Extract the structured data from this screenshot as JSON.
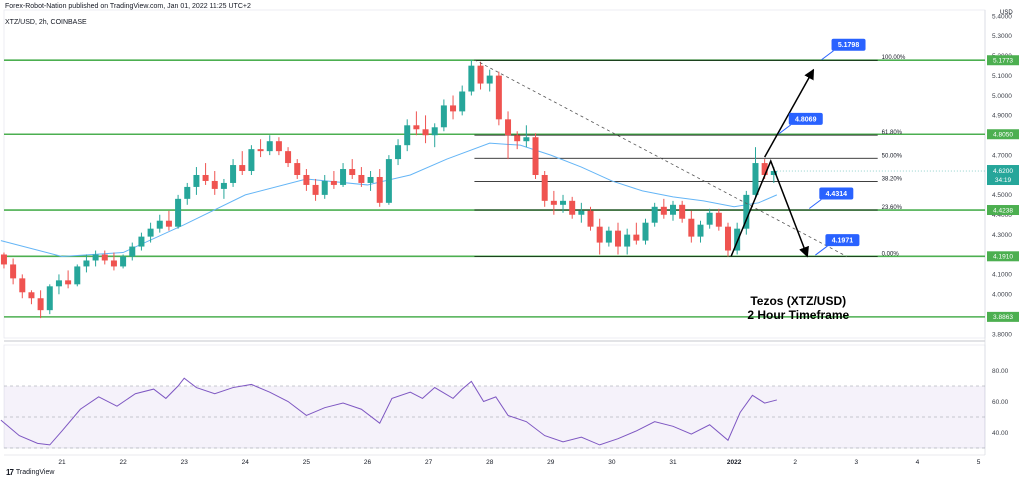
{
  "header": {
    "published": "Forex-Robot-Nation published on TradingView.com, Jan 01, 2022 11:25 UTC+2",
    "symbol": "XTZ/USD, 2h, COINBASE"
  },
  "footer": {
    "brand": "TradingView",
    "brand_logo": "17"
  },
  "colors": {
    "up": "#26a69a",
    "down": "#ef5350",
    "ma": "#64b5f6",
    "level": "#4caf50",
    "tag": "#2962ff",
    "rsi": "#7e57c2",
    "axis_text": "#131722"
  },
  "chart_data": {
    "type": "candlestick",
    "title": "Tezos (XTZ/USD)",
    "subtitle": "2 Hour Timeframe",
    "currency": "USD",
    "price_axis": {
      "range": [
        3.78,
        5.43
      ],
      "ticks": [
        5.4,
        5.3,
        5.2,
        5.1,
        5.0,
        4.9,
        4.8,
        4.7,
        4.6,
        4.5,
        4.4,
        4.3,
        4.2,
        4.1,
        4.0,
        3.9,
        3.8
      ],
      "top_label": "5.4000"
    },
    "x_axis": {
      "labels": [
        "21",
        "22",
        "23",
        "24",
        "25",
        "26",
        "27",
        "28",
        "29",
        "30",
        "31",
        "2022",
        "2",
        "3",
        "4",
        "5"
      ],
      "bold": [
        "2022"
      ]
    },
    "horizontal_levels": [
      5.1773,
      4.805,
      4.4238,
      4.191,
      3.8863
    ],
    "price_tags": [
      {
        "label": "5.1773",
        "value": 5.1773
      },
      {
        "label": "4.8050",
        "value": 4.805
      },
      {
        "label": "4.6200",
        "value": 4.62,
        "sub": "34:19",
        "current": true
      },
      {
        "label": "4.4238",
        "value": 4.4238
      },
      {
        "label": "4.1910",
        "value": 4.191
      },
      {
        "label": "3.8863",
        "value": 3.8863
      }
    ],
    "fibonacci": {
      "high": 5.1773,
      "low": 4.191,
      "levels": [
        {
          "ratio": 1.0,
          "label": "100.00%"
        },
        {
          "ratio": 0.618,
          "label": "61.80%"
        },
        {
          "ratio": 0.5,
          "label": "50.00%"
        },
        {
          "ratio": 0.382,
          "label": "38.20%"
        },
        {
          "ratio": 0.236,
          "label": "23.60%"
        },
        {
          "ratio": 0.0,
          "label": "0.00%"
        }
      ]
    },
    "callouts": [
      {
        "label": "5.1798",
        "value": 5.1798
      },
      {
        "label": "4.8069",
        "value": 4.8069
      },
      {
        "label": "4.4314",
        "value": 4.4314
      },
      {
        "label": "4.1971",
        "value": 4.1971
      }
    ],
    "trendline": {
      "from": {
        "day": 27.75,
        "price": 5.18
      },
      "to": {
        "day": 32.7,
        "price": 4.2
      }
    },
    "projection": [
      {
        "day": 31.95,
        "price": 4.19
      },
      {
        "day": 32.6,
        "price": 4.67
      },
      {
        "day": 33.2,
        "price": 4.19
      }
    ],
    "projection_up": {
      "from": {
        "day": 32.5,
        "price": 4.69
      },
      "to": {
        "day": 33.3,
        "price": 5.13
      }
    },
    "candles": [
      [
        20.05,
        4.2,
        4.21,
        4.13,
        4.15
      ],
      [
        20.2,
        4.15,
        4.18,
        4.05,
        4.08
      ],
      [
        20.35,
        4.08,
        4.1,
        3.98,
        4.01
      ],
      [
        20.5,
        4.01,
        4.02,
        3.95,
        3.98
      ],
      [
        20.65,
        3.98,
        4.02,
        3.88,
        3.92
      ],
      [
        20.8,
        3.92,
        4.05,
        3.9,
        4.04
      ],
      [
        20.95,
        4.04,
        4.1,
        4.0,
        4.07
      ],
      [
        21.1,
        4.07,
        4.12,
        4.03,
        4.05
      ],
      [
        21.25,
        4.05,
        4.15,
        4.04,
        4.14
      ],
      [
        21.4,
        4.14,
        4.2,
        4.11,
        4.17
      ],
      [
        21.55,
        4.17,
        4.22,
        4.14,
        4.2
      ],
      [
        21.7,
        4.2,
        4.22,
        4.15,
        4.17
      ],
      [
        21.85,
        4.17,
        4.21,
        4.12,
        4.14
      ],
      [
        22.0,
        4.14,
        4.2,
        4.13,
        4.19
      ],
      [
        22.15,
        4.19,
        4.26,
        4.17,
        4.24
      ],
      [
        22.3,
        4.24,
        4.31,
        4.22,
        4.29
      ],
      [
        22.45,
        4.29,
        4.36,
        4.26,
        4.33
      ],
      [
        22.6,
        4.33,
        4.4,
        4.31,
        4.37
      ],
      [
        22.75,
        4.37,
        4.42,
        4.32,
        4.34
      ],
      [
        22.9,
        4.34,
        4.5,
        4.33,
        4.48
      ],
      [
        23.05,
        4.48,
        4.56,
        4.45,
        4.54
      ],
      [
        23.2,
        4.54,
        4.64,
        4.5,
        4.6
      ],
      [
        23.35,
        4.6,
        4.66,
        4.55,
        4.57
      ],
      [
        23.5,
        4.57,
        4.62,
        4.5,
        4.53
      ],
      [
        23.65,
        4.53,
        4.58,
        4.48,
        4.56
      ],
      [
        23.8,
        4.56,
        4.68,
        4.54,
        4.65
      ],
      [
        23.95,
        4.65,
        4.72,
        4.6,
        4.62
      ],
      [
        24.1,
        4.62,
        4.75,
        4.6,
        4.73
      ],
      [
        24.25,
        4.73,
        4.78,
        4.69,
        4.72
      ],
      [
        24.4,
        4.72,
        4.8,
        4.7,
        4.77
      ],
      [
        24.55,
        4.77,
        4.79,
        4.7,
        4.72
      ],
      [
        24.7,
        4.72,
        4.74,
        4.64,
        4.66
      ],
      [
        24.85,
        4.66,
        4.68,
        4.58,
        4.6
      ],
      [
        25.0,
        4.6,
        4.63,
        4.52,
        4.55
      ],
      [
        25.15,
        4.55,
        4.58,
        4.47,
        4.5
      ],
      [
        25.3,
        4.5,
        4.6,
        4.48,
        4.57
      ],
      [
        25.45,
        4.57,
        4.62,
        4.53,
        4.55
      ],
      [
        25.6,
        4.55,
        4.66,
        4.54,
        4.63
      ],
      [
        25.75,
        4.63,
        4.68,
        4.58,
        4.6
      ],
      [
        25.9,
        4.6,
        4.64,
        4.54,
        4.56
      ],
      [
        26.05,
        4.56,
        4.62,
        4.52,
        4.59
      ],
      [
        26.2,
        4.59,
        4.63,
        4.44,
        4.46
      ],
      [
        26.35,
        4.46,
        4.7,
        4.45,
        4.68
      ],
      [
        26.5,
        4.68,
        4.78,
        4.65,
        4.75
      ],
      [
        26.65,
        4.75,
        4.88,
        4.72,
        4.85
      ],
      [
        26.8,
        4.85,
        4.92,
        4.8,
        4.83
      ],
      [
        26.95,
        4.83,
        4.9,
        4.76,
        4.8
      ],
      [
        27.1,
        4.8,
        4.86,
        4.74,
        4.84
      ],
      [
        27.25,
        4.84,
        4.98,
        4.82,
        4.95
      ],
      [
        27.4,
        4.95,
        5.0,
        4.88,
        4.92
      ],
      [
        27.55,
        4.92,
        5.05,
        4.9,
        5.02
      ],
      [
        27.7,
        5.02,
        5.18,
        5.0,
        5.15
      ],
      [
        27.85,
        5.15,
        5.17,
        5.03,
        5.06
      ],
      [
        28.0,
        5.06,
        5.13,
        5.02,
        5.1
      ],
      [
        28.15,
        5.1,
        5.12,
        4.85,
        4.88
      ],
      [
        28.3,
        4.88,
        4.92,
        4.68,
        4.8
      ],
      [
        28.45,
        4.8,
        4.82,
        4.73,
        4.77
      ],
      [
        28.6,
        4.77,
        4.85,
        4.74,
        4.79
      ],
      [
        28.75,
        4.79,
        4.81,
        4.58,
        4.6
      ],
      [
        28.9,
        4.6,
        4.62,
        4.44,
        4.47
      ],
      [
        29.05,
        4.47,
        4.52,
        4.4,
        4.45
      ],
      [
        29.2,
        4.45,
        4.5,
        4.41,
        4.47
      ],
      [
        29.35,
        4.47,
        4.49,
        4.38,
        4.4
      ],
      [
        29.5,
        4.4,
        4.46,
        4.36,
        4.42
      ],
      [
        29.65,
        4.42,
        4.44,
        4.32,
        4.34
      ],
      [
        29.8,
        4.34,
        4.38,
        4.2,
        4.26
      ],
      [
        29.95,
        4.26,
        4.34,
        4.24,
        4.32
      ],
      [
        30.1,
        4.32,
        4.36,
        4.2,
        4.24
      ],
      [
        30.25,
        4.24,
        4.33,
        4.2,
        4.3
      ],
      [
        30.4,
        4.3,
        4.36,
        4.25,
        4.27
      ],
      [
        30.55,
        4.27,
        4.38,
        4.25,
        4.36
      ],
      [
        30.7,
        4.36,
        4.46,
        4.34,
        4.44
      ],
      [
        30.85,
        4.44,
        4.48,
        4.38,
        4.4
      ],
      [
        31.0,
        4.4,
        4.47,
        4.37,
        4.45
      ],
      [
        31.15,
        4.45,
        4.47,
        4.36,
        4.38
      ],
      [
        31.3,
        4.38,
        4.42,
        4.26,
        4.29
      ],
      [
        31.45,
        4.29,
        4.37,
        4.26,
        4.35
      ],
      [
        31.6,
        4.35,
        4.43,
        4.33,
        4.41
      ],
      [
        31.75,
        4.41,
        4.43,
        4.32,
        4.34
      ],
      [
        31.9,
        4.34,
        4.36,
        4.19,
        4.22
      ],
      [
        32.05,
        4.22,
        4.36,
        4.2,
        4.33
      ],
      [
        32.2,
        4.33,
        4.52,
        4.3,
        4.5
      ],
      [
        32.35,
        4.5,
        4.74,
        4.48,
        4.66
      ],
      [
        32.5,
        4.66,
        4.68,
        4.58,
        4.6
      ],
      [
        32.65,
        4.6,
        4.64,
        4.56,
        4.62
      ]
    ],
    "ma_line": [
      [
        20.0,
        4.27
      ],
      [
        21.0,
        4.19
      ],
      [
        22.0,
        4.21
      ],
      [
        23.0,
        4.35
      ],
      [
        24.0,
        4.5
      ],
      [
        25.0,
        4.58
      ],
      [
        26.0,
        4.55
      ],
      [
        26.7,
        4.6
      ],
      [
        27.3,
        4.68
      ],
      [
        28.0,
        4.76
      ],
      [
        28.5,
        4.75
      ],
      [
        29.0,
        4.7
      ],
      [
        29.5,
        4.64
      ],
      [
        30.0,
        4.57
      ],
      [
        30.5,
        4.52
      ],
      [
        31.0,
        4.49
      ],
      [
        31.5,
        4.47
      ],
      [
        32.0,
        4.44
      ],
      [
        32.4,
        4.46
      ],
      [
        32.7,
        4.5
      ]
    ],
    "rsi": {
      "ticks": [
        "80.00",
        "60.00",
        "40.00"
      ],
      "overbought": 70,
      "oversold": 30,
      "series": [
        [
          20.0,
          48
        ],
        [
          20.3,
          38
        ],
        [
          20.6,
          33
        ],
        [
          20.8,
          32
        ],
        [
          21.0,
          41
        ],
        [
          21.3,
          55
        ],
        [
          21.6,
          63
        ],
        [
          21.9,
          57
        ],
        [
          22.2,
          65
        ],
        [
          22.5,
          68
        ],
        [
          22.7,
          62
        ],
        [
          22.9,
          70
        ],
        [
          23.0,
          75
        ],
        [
          23.2,
          69
        ],
        [
          23.5,
          65
        ],
        [
          23.8,
          69
        ],
        [
          24.1,
          71
        ],
        [
          24.4,
          66
        ],
        [
          24.7,
          60
        ],
        [
          25.0,
          51
        ],
        [
          25.3,
          56
        ],
        [
          25.6,
          59
        ],
        [
          25.9,
          55
        ],
        [
          26.2,
          46
        ],
        [
          26.4,
          62
        ],
        [
          26.7,
          66
        ],
        [
          26.9,
          62
        ],
        [
          27.1,
          69
        ],
        [
          27.4,
          62
        ],
        [
          27.55,
          68
        ],
        [
          27.7,
          73
        ],
        [
          27.9,
          60
        ],
        [
          28.1,
          63
        ],
        [
          28.3,
          51
        ],
        [
          28.6,
          47
        ],
        [
          28.9,
          38
        ],
        [
          29.2,
          34
        ],
        [
          29.5,
          37
        ],
        [
          29.8,
          32
        ],
        [
          30.1,
          36
        ],
        [
          30.4,
          41
        ],
        [
          30.7,
          47
        ],
        [
          31.0,
          44
        ],
        [
          31.3,
          39
        ],
        [
          31.6,
          45
        ],
        [
          31.9,
          35
        ],
        [
          32.1,
          53
        ],
        [
          32.3,
          64
        ],
        [
          32.5,
          59
        ],
        [
          32.7,
          61
        ]
      ]
    }
  }
}
